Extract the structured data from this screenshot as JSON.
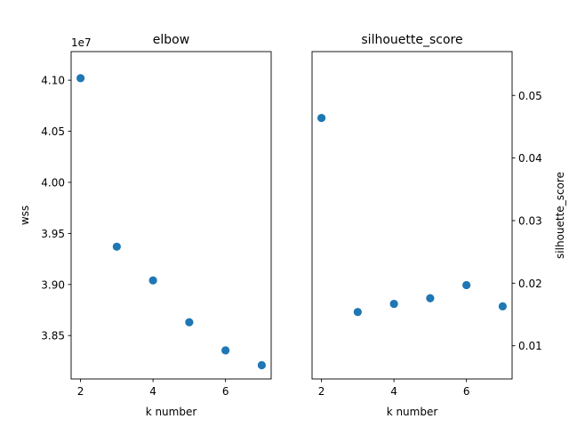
{
  "chart_data": [
    {
      "type": "scatter",
      "title": "elbow",
      "xlabel": "k number",
      "ylabel": "wss",
      "y_offset_label": "1e7",
      "xlim": [
        1.74,
        7.26
      ],
      "ylim": [
        38.075,
        41.28
      ],
      "xticks": [
        2,
        4,
        6
      ],
      "xtick_labels": [
        "2",
        "4",
        "6"
      ],
      "yticks": [
        38.5,
        39.0,
        39.5,
        40.0,
        40.5,
        41.0
      ],
      "ytick_labels": [
        "3.85",
        "3.90",
        "3.95",
        "4.00",
        "4.05",
        "4.10"
      ],
      "y_axis_side": "left",
      "grid": false,
      "color": "#1f77b4",
      "points": [
        {
          "x": 2,
          "y": 41.02
        },
        {
          "x": 3,
          "y": 39.37
        },
        {
          "x": 4,
          "y": 39.04
        },
        {
          "x": 5,
          "y": 38.63
        },
        {
          "x": 6,
          "y": 38.355
        },
        {
          "x": 7,
          "y": 38.21
        }
      ]
    },
    {
      "type": "scatter",
      "title": "silhouette_score",
      "xlabel": "k number",
      "ylabel": "silhouette_score",
      "xlim": [
        1.74,
        7.26
      ],
      "ylim": [
        0.0047,
        0.057
      ],
      "xticks": [
        2,
        4,
        6
      ],
      "xtick_labels": [
        "2",
        "4",
        "6"
      ],
      "yticks": [
        0.01,
        0.02,
        0.03,
        0.04,
        0.05
      ],
      "ytick_labels": [
        "0.01",
        "0.02",
        "0.03",
        "0.04",
        "0.05"
      ],
      "y_axis_side": "right",
      "grid": false,
      "color": "#1f77b4",
      "points": [
        {
          "x": 2,
          "y": 0.0464
        },
        {
          "x": 3,
          "y": 0.0154
        },
        {
          "x": 4,
          "y": 0.0167
        },
        {
          "x": 5,
          "y": 0.0176
        },
        {
          "x": 6,
          "y": 0.0197
        },
        {
          "x": 7,
          "y": 0.0163
        }
      ]
    }
  ]
}
